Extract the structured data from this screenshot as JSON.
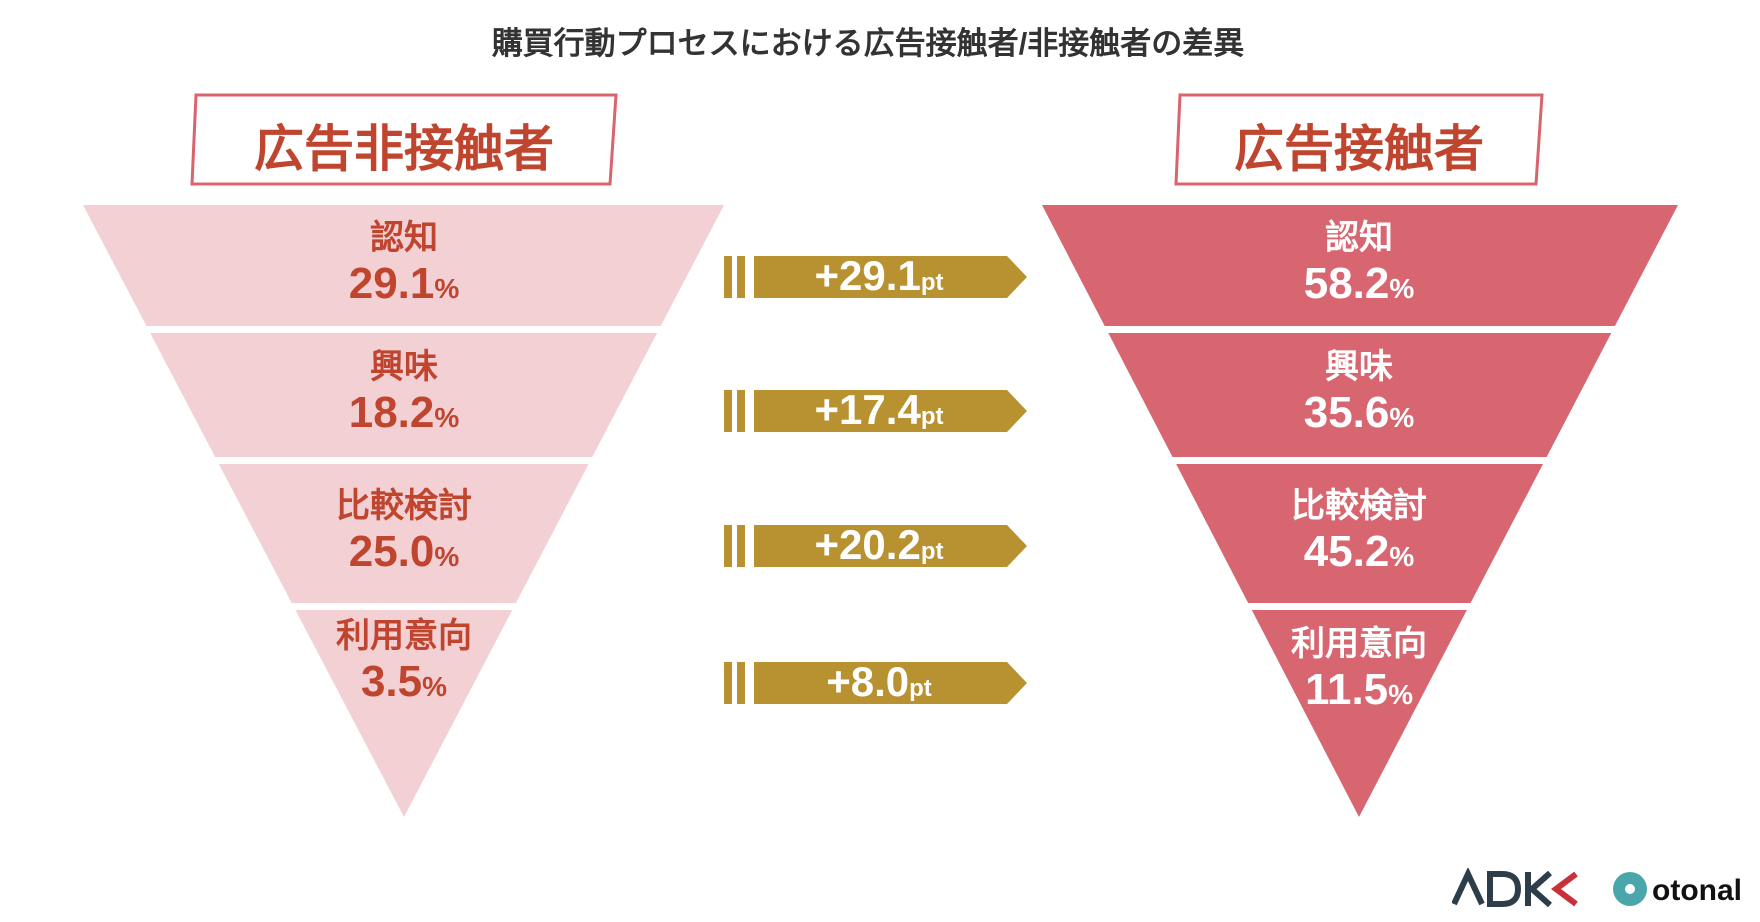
{
  "title": "購買行動プロセスにおける広告接触者/非接触者の差異",
  "colors": {
    "light": "#f2d0d4",
    "dark": "#d76670",
    "text_red": "#c0452e",
    "gold": "#b89131",
    "box_border": "#d9646e"
  },
  "chart_data": {
    "type": "funnel",
    "title": "購買行動プロセスにおける広告接触者/非接触者の差異",
    "unit": "%",
    "stages": [
      "認知",
      "興味",
      "比較検討",
      "利用意向"
    ],
    "series": [
      {
        "name": "広告非接触者",
        "values": [
          29.1,
          18.2,
          25.0,
          3.5
        ],
        "labels": [
          "29.1",
          "18.2",
          "25.0",
          "3.5"
        ]
      },
      {
        "name": "広告接触者",
        "values": [
          58.2,
          35.6,
          45.2,
          11.5
        ],
        "labels": [
          "58.2",
          "35.6",
          "45.2",
          "11.5"
        ]
      }
    ],
    "differences": {
      "unit": "pt",
      "values": [
        29.1,
        17.4,
        20.2,
        8.0
      ],
      "labels": [
        "+29.1",
        "+17.4",
        "+20.2",
        "+8.0"
      ]
    }
  },
  "logos": [
    "ADK",
    "otonal"
  ]
}
